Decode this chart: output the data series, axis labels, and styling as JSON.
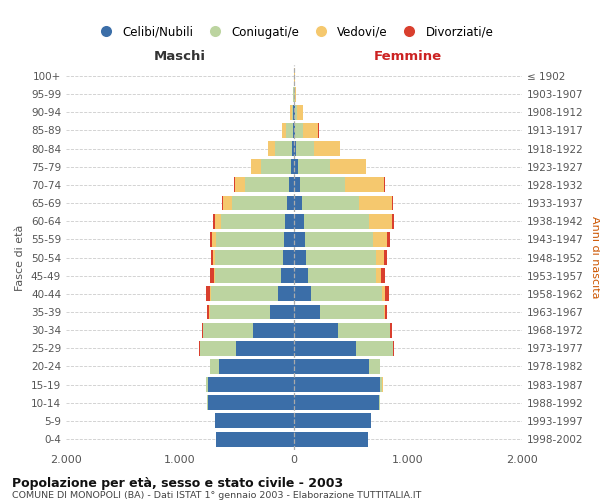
{
  "age_groups": [
    "100+",
    "95-99",
    "90-94",
    "85-89",
    "80-84",
    "75-79",
    "70-74",
    "65-69",
    "60-64",
    "55-59",
    "50-54",
    "45-49",
    "40-44",
    "35-39",
    "30-34",
    "25-29",
    "20-24",
    "15-19",
    "10-14",
    "5-9",
    "0-4"
  ],
  "birth_years": [
    "≤ 1902",
    "1903-1907",
    "1908-1912",
    "1913-1917",
    "1918-1922",
    "1923-1927",
    "1928-1932",
    "1933-1937",
    "1938-1942",
    "1943-1947",
    "1948-1952",
    "1953-1957",
    "1958-1962",
    "1963-1967",
    "1968-1972",
    "1973-1977",
    "1978-1982",
    "1983-1987",
    "1988-1992",
    "1993-1997",
    "1998-2002"
  ],
  "males": {
    "celibi": [
      2,
      3,
      5,
      10,
      18,
      30,
      45,
      58,
      78,
      92,
      98,
      112,
      138,
      208,
      362,
      512,
      658,
      758,
      758,
      692,
      682
    ],
    "coniugati": [
      1,
      4,
      16,
      62,
      148,
      262,
      382,
      482,
      562,
      592,
      592,
      582,
      592,
      532,
      432,
      312,
      78,
      18,
      4,
      1,
      1
    ],
    "vedovi": [
      0,
      2,
      10,
      32,
      62,
      82,
      92,
      82,
      56,
      36,
      18,
      12,
      8,
      4,
      2,
      2,
      1,
      0,
      0,
      0,
      0
    ],
    "divorziati": [
      0,
      0,
      1,
      2,
      3,
      5,
      5,
      8,
      14,
      20,
      24,
      28,
      34,
      18,
      9,
      4,
      2,
      0,
      0,
      0,
      0
    ]
  },
  "females": {
    "nubili": [
      2,
      4,
      8,
      12,
      20,
      38,
      52,
      70,
      86,
      98,
      108,
      122,
      152,
      228,
      382,
      542,
      662,
      758,
      748,
      672,
      648
    ],
    "coniugate": [
      1,
      5,
      20,
      70,
      158,
      278,
      398,
      498,
      568,
      598,
      608,
      598,
      618,
      558,
      458,
      328,
      88,
      18,
      4,
      1,
      1
    ],
    "vedove": [
      2,
      10,
      52,
      132,
      222,
      312,
      342,
      288,
      202,
      122,
      70,
      40,
      24,
      10,
      4,
      2,
      2,
      1,
      0,
      0,
      0
    ],
    "divorziate": [
      0,
      0,
      1,
      2,
      4,
      5,
      8,
      10,
      18,
      24,
      30,
      34,
      40,
      24,
      12,
      4,
      2,
      1,
      0,
      0,
      0
    ]
  },
  "colors": {
    "celibi": "#3b6ea8",
    "coniugati": "#bcd4a0",
    "vedovi": "#f5c86e",
    "divorziati": "#d93f2e"
  },
  "xlim": 2000,
  "title": "Popolazione per età, sesso e stato civile - 2003",
  "subtitle": "COMUNE DI MONOPOLI (BA) - Dati ISTAT 1° gennaio 2003 - Elaborazione TUTTITALIA.IT",
  "ylabel_left": "Fasce di età",
  "ylabel_right": "Anni di nascita",
  "xlabel_maschi": "Maschi",
  "xlabel_femmine": "Femmine",
  "legend_labels": [
    "Celibi/Nubili",
    "Coniugati/e",
    "Vedovi/e",
    "Divorziati/e"
  ],
  "background_color": "#ffffff",
  "grid_color": "#cccccc"
}
